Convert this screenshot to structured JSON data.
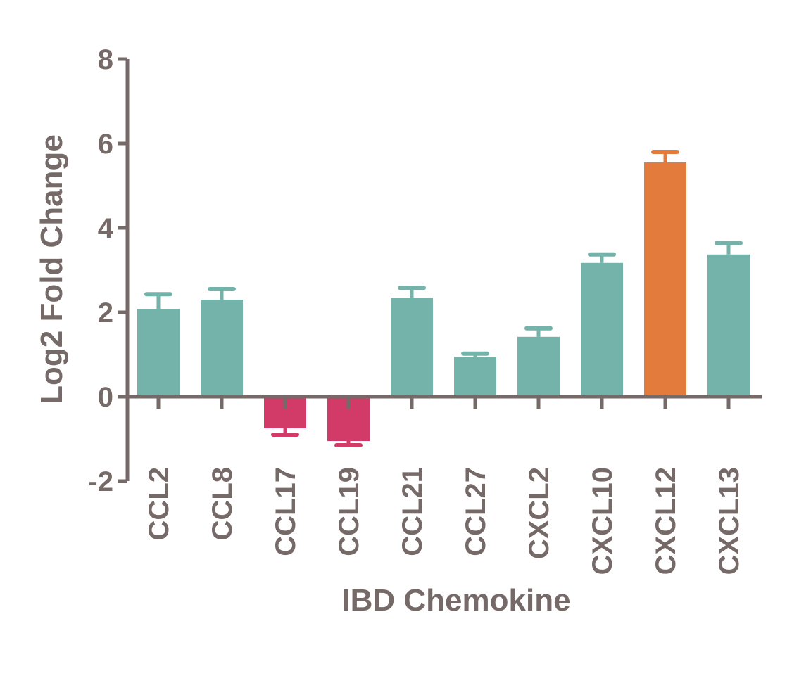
{
  "chart_data": {
    "type": "bar",
    "xlabel": "IBD Chemokine",
    "ylabel": "Log2 Fold Change",
    "ylim": [
      -2,
      8
    ],
    "yticks": [
      -2,
      0,
      2,
      4,
      6,
      8
    ],
    "categories": [
      "CCL2",
      "CCL8",
      "CCL17",
      "CCL19",
      "CCL21",
      "CCL27",
      "CXCL2",
      "CXCL10",
      "CXCL12",
      "CXCL13"
    ],
    "values": [
      2.08,
      2.3,
      -0.75,
      -1.05,
      2.35,
      0.95,
      1.42,
      3.17,
      5.55,
      3.37
    ],
    "errors": [
      0.35,
      0.25,
      0.15,
      0.1,
      0.23,
      0.07,
      0.2,
      0.2,
      0.25,
      0.27
    ],
    "bar_colors": [
      "#74b3a9",
      "#74b3a9",
      "#d23a67",
      "#d23a67",
      "#74b3a9",
      "#74b3a9",
      "#74b3a9",
      "#74b3a9",
      "#e27b3b",
      "#74b3a9"
    ],
    "axis_color": "#756a68",
    "grid": false
  }
}
